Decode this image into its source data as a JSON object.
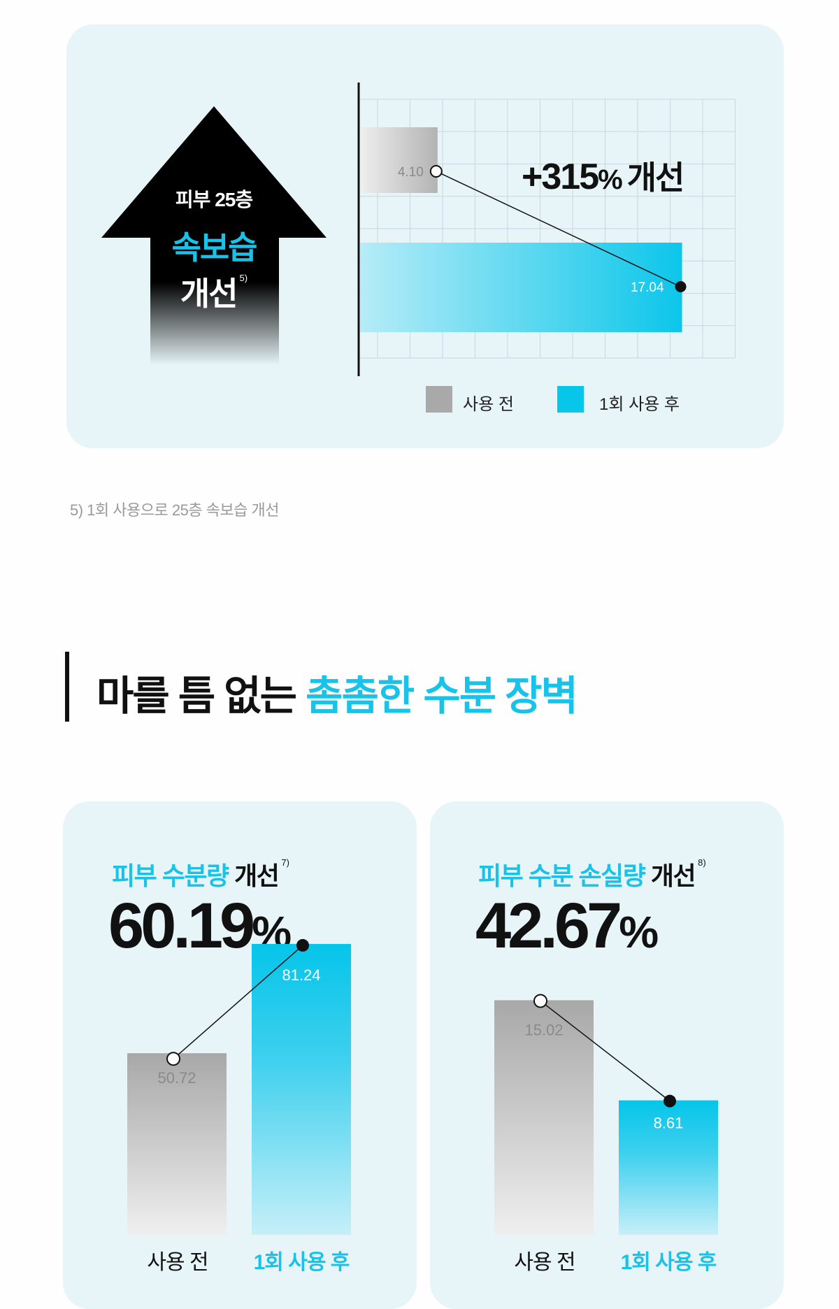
{
  "top_section": {
    "arrow": {
      "line1": "피부 25층",
      "line2": "속보습",
      "line3": "개선",
      "footnote_mark": "5)"
    },
    "improvement_label": "+315",
    "improvement_pct": "%",
    "improvement_word": "개선",
    "legend": [
      {
        "label": "사용 전",
        "color": "#a9a9a9"
      },
      {
        "label": "1회 사용 후",
        "color": "#08c6ea"
      }
    ]
  },
  "footnote": "5) 1회 사용으로 25층 속보습 개선",
  "heading": {
    "plain": "마를 틈 없는",
    "highlight": "촘촘한 수분 장벽"
  },
  "cards": [
    {
      "title_highlight": "피부 수분량",
      "title_plain": "개선",
      "footnote_mark": "7)",
      "percent": "60.19",
      "percent_sign": "%"
    },
    {
      "title_highlight": "피부 수분 손실량",
      "title_plain": "개선",
      "footnote_mark": "8)",
      "percent": "42.67",
      "percent_sign": "%"
    }
  ],
  "colors": {
    "accent": "#18c2e8",
    "card_bg": "#e7f4f8",
    "before_bar": "#a9a9a9"
  },
  "chart_data": [
    {
      "type": "bar",
      "orientation": "horizontal",
      "categories": [
        "사용 전",
        "1회 사용 후"
      ],
      "values": [
        4.1,
        17.04
      ],
      "xlim": [
        0,
        18.5
      ],
      "grid": true,
      "legend_position": "bottom"
    },
    {
      "type": "bar",
      "categories": [
        "사용 전",
        "1회 사용 후"
      ],
      "values": [
        50.72,
        81.24
      ],
      "ylim": [
        0,
        82
      ]
    },
    {
      "type": "bar",
      "categories": [
        "사용 전",
        "1회 사용 후"
      ],
      "values": [
        15.02,
        8.61
      ],
      "ylim": [
        0,
        18.8
      ]
    }
  ]
}
